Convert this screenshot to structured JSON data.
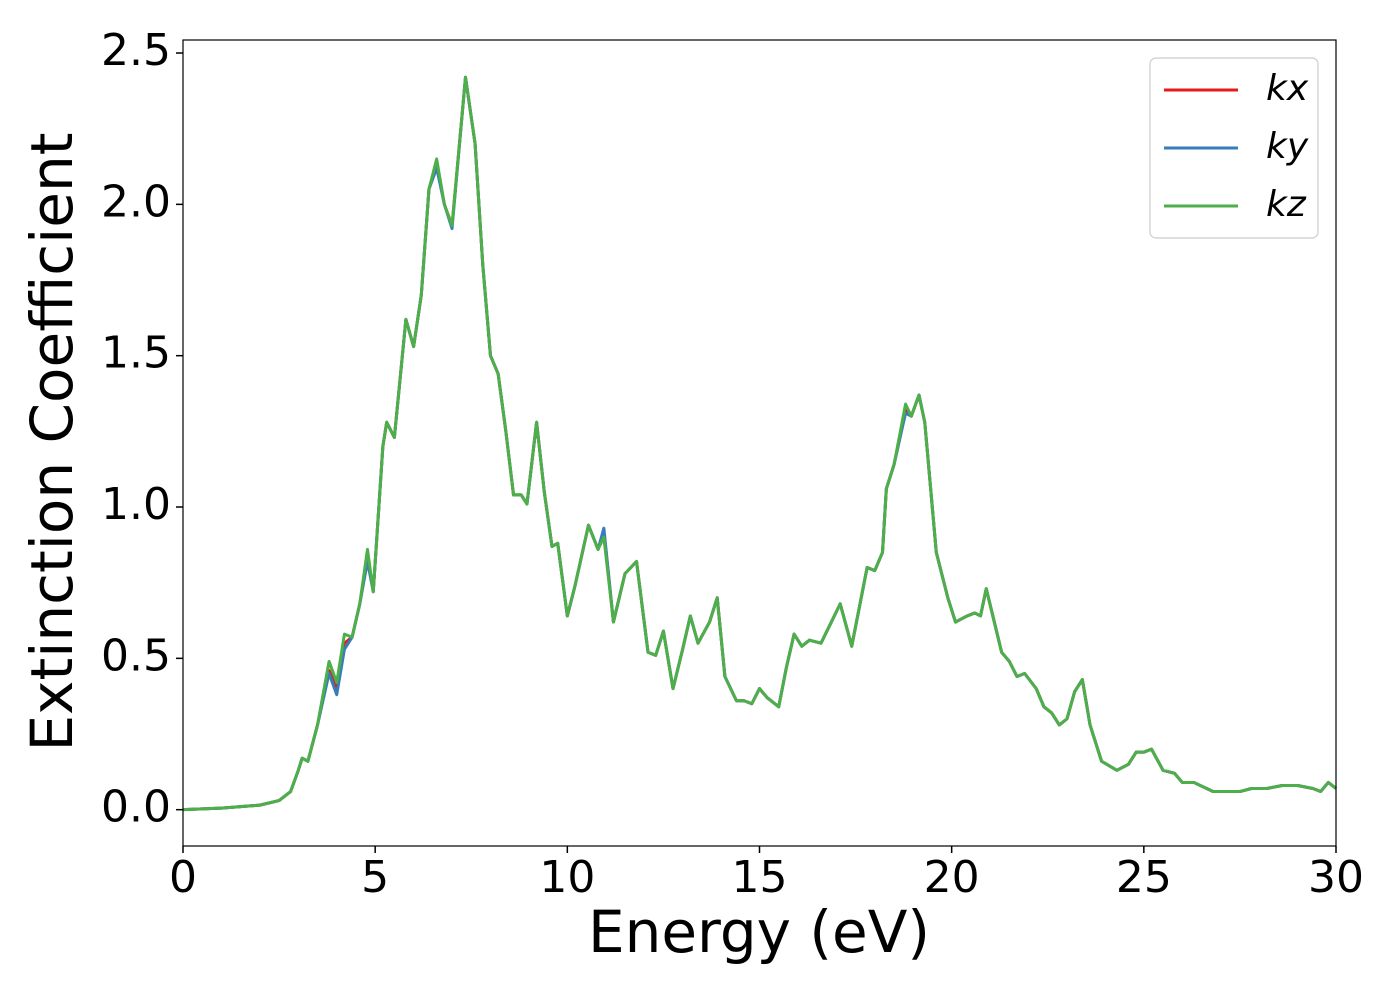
{
  "chart_data": {
    "type": "line",
    "xlabel": "Energy (eV)",
    "ylabel": "Extinction Coefficient",
    "x": [
      0,
      1,
      2,
      2.5,
      2.8,
      3,
      3.1,
      3.25,
      3.5,
      3.8,
      4,
      4.2,
      4.4,
      4.6,
      4.8,
      4.95,
      5.2,
      5.3,
      5.5,
      5.8,
      6,
      6.2,
      6.4,
      6.6,
      6.8,
      7,
      7.35,
      7.6,
      7.8,
      8,
      8.2,
      8.4,
      8.6,
      8.8,
      8.95,
      9.2,
      9.4,
      9.6,
      9.75,
      10,
      10.2,
      10.55,
      10.8,
      10.95,
      11.2,
      11.5,
      11.8,
      12.1,
      12.3,
      12.5,
      12.75,
      13,
      13.2,
      13.4,
      13.7,
      13.9,
      14.1,
      14.4,
      14.6,
      14.8,
      15,
      15.2,
      15.5,
      15.7,
      15.9,
      16.1,
      16.3,
      16.6,
      17.1,
      17.4,
      17.8,
      18,
      18.2,
      18.3,
      18.5,
      18.8,
      18.95,
      19.15,
      19.3,
      19.6,
      19.9,
      20.1,
      20.4,
      20.6,
      20.75,
      20.9,
      21.3,
      21.5,
      21.7,
      21.9,
      22.2,
      22.4,
      22.6,
      22.8,
      23,
      23.2,
      23.4,
      23.6,
      23.9,
      24.3,
      24.6,
      24.8,
      25,
      25.2,
      25.5,
      25.8,
      26,
      26.3,
      26.8,
      27.2,
      27.5,
      27.8,
      28.2,
      28.6,
      29,
      29.4,
      29.6,
      29.8,
      30
    ],
    "series": [
      {
        "name": "kx",
        "color": "#e41a1c",
        "values": [
          0,
          0.005,
          0.015,
          0.03,
          0.06,
          0.13,
          0.17,
          0.16,
          0.28,
          0.46,
          0.4,
          0.55,
          0.57,
          0.68,
          0.84,
          0.72,
          1.2,
          1.28,
          1.23,
          1.62,
          1.53,
          1.7,
          2.05,
          2.14,
          2.0,
          1.93,
          2.42,
          2.2,
          1.8,
          1.5,
          1.44,
          1.25,
          1.04,
          1.04,
          1.01,
          1.28,
          1.05,
          0.87,
          0.88,
          0.64,
          0.74,
          0.94,
          0.86,
          0.92,
          0.62,
          0.78,
          0.82,
          0.52,
          0.51,
          0.59,
          0.4,
          0.53,
          0.64,
          0.55,
          0.62,
          0.7,
          0.44,
          0.36,
          0.36,
          0.35,
          0.4,
          0.37,
          0.34,
          0.47,
          0.58,
          0.54,
          0.56,
          0.55,
          0.68,
          0.54,
          0.8,
          0.79,
          0.85,
          1.06,
          1.14,
          1.32,
          1.3,
          1.37,
          1.28,
          0.85,
          0.7,
          0.62,
          0.64,
          0.65,
          0.64,
          0.73,
          0.52,
          0.49,
          0.44,
          0.45,
          0.4,
          0.34,
          0.32,
          0.28,
          0.3,
          0.39,
          0.43,
          0.28,
          0.16,
          0.13,
          0.15,
          0.19,
          0.19,
          0.2,
          0.13,
          0.12,
          0.09,
          0.09,
          0.06,
          0.06,
          0.06,
          0.07,
          0.07,
          0.08,
          0.08,
          0.07,
          0.06,
          0.09,
          0.07
        ]
      },
      {
        "name": "ky",
        "color": "#377eb8",
        "values": [
          0,
          0.005,
          0.015,
          0.03,
          0.06,
          0.13,
          0.17,
          0.16,
          0.28,
          0.45,
          0.38,
          0.53,
          0.57,
          0.68,
          0.82,
          0.72,
          1.2,
          1.28,
          1.23,
          1.62,
          1.53,
          1.7,
          2.05,
          2.12,
          2.0,
          1.92,
          2.42,
          2.2,
          1.8,
          1.5,
          1.44,
          1.25,
          1.04,
          1.04,
          1.01,
          1.28,
          1.05,
          0.87,
          0.88,
          0.64,
          0.74,
          0.94,
          0.86,
          0.93,
          0.62,
          0.78,
          0.82,
          0.52,
          0.51,
          0.59,
          0.4,
          0.53,
          0.64,
          0.55,
          0.62,
          0.7,
          0.44,
          0.36,
          0.36,
          0.35,
          0.4,
          0.37,
          0.34,
          0.47,
          0.58,
          0.54,
          0.56,
          0.55,
          0.68,
          0.54,
          0.8,
          0.79,
          0.85,
          1.06,
          1.14,
          1.31,
          1.3,
          1.37,
          1.28,
          0.85,
          0.7,
          0.62,
          0.64,
          0.65,
          0.64,
          0.73,
          0.52,
          0.49,
          0.44,
          0.45,
          0.4,
          0.34,
          0.32,
          0.28,
          0.3,
          0.39,
          0.43,
          0.28,
          0.16,
          0.13,
          0.15,
          0.19,
          0.19,
          0.2,
          0.13,
          0.12,
          0.09,
          0.09,
          0.06,
          0.06,
          0.06,
          0.07,
          0.07,
          0.08,
          0.08,
          0.07,
          0.06,
          0.09,
          0.07
        ]
      },
      {
        "name": "kz",
        "color": "#4daf4a",
        "values": [
          0,
          0.005,
          0.015,
          0.03,
          0.06,
          0.13,
          0.17,
          0.16,
          0.28,
          0.49,
          0.42,
          0.58,
          0.57,
          0.68,
          0.86,
          0.72,
          1.2,
          1.28,
          1.23,
          1.62,
          1.53,
          1.7,
          2.05,
          2.15,
          2.0,
          1.93,
          2.42,
          2.2,
          1.8,
          1.5,
          1.44,
          1.25,
          1.04,
          1.04,
          1.01,
          1.28,
          1.05,
          0.87,
          0.88,
          0.64,
          0.74,
          0.94,
          0.86,
          0.9,
          0.62,
          0.78,
          0.82,
          0.52,
          0.51,
          0.59,
          0.4,
          0.53,
          0.64,
          0.55,
          0.62,
          0.7,
          0.44,
          0.36,
          0.36,
          0.35,
          0.4,
          0.37,
          0.34,
          0.47,
          0.58,
          0.54,
          0.56,
          0.55,
          0.68,
          0.54,
          0.8,
          0.79,
          0.85,
          1.06,
          1.14,
          1.34,
          1.3,
          1.37,
          1.28,
          0.85,
          0.7,
          0.62,
          0.64,
          0.65,
          0.64,
          0.73,
          0.52,
          0.49,
          0.44,
          0.45,
          0.4,
          0.34,
          0.32,
          0.28,
          0.3,
          0.39,
          0.43,
          0.28,
          0.16,
          0.13,
          0.15,
          0.19,
          0.19,
          0.2,
          0.13,
          0.12,
          0.09,
          0.09,
          0.06,
          0.06,
          0.06,
          0.07,
          0.07,
          0.08,
          0.08,
          0.07,
          0.06,
          0.09,
          0.07
        ]
      }
    ],
    "xlim": [
      0,
      30
    ],
    "xticks": [
      0,
      5,
      10,
      15,
      20,
      25,
      30
    ],
    "ylim": [
      -0.12,
      2.543
    ],
    "yticks": [
      {
        "value": 0,
        "label": "0.0"
      },
      0.5,
      {
        "value": 1,
        "label": "1.0"
      },
      1.5,
      {
        "value": 2,
        "label": "2.0"
      },
      2.5
    ],
    "legend": "upper right"
  }
}
